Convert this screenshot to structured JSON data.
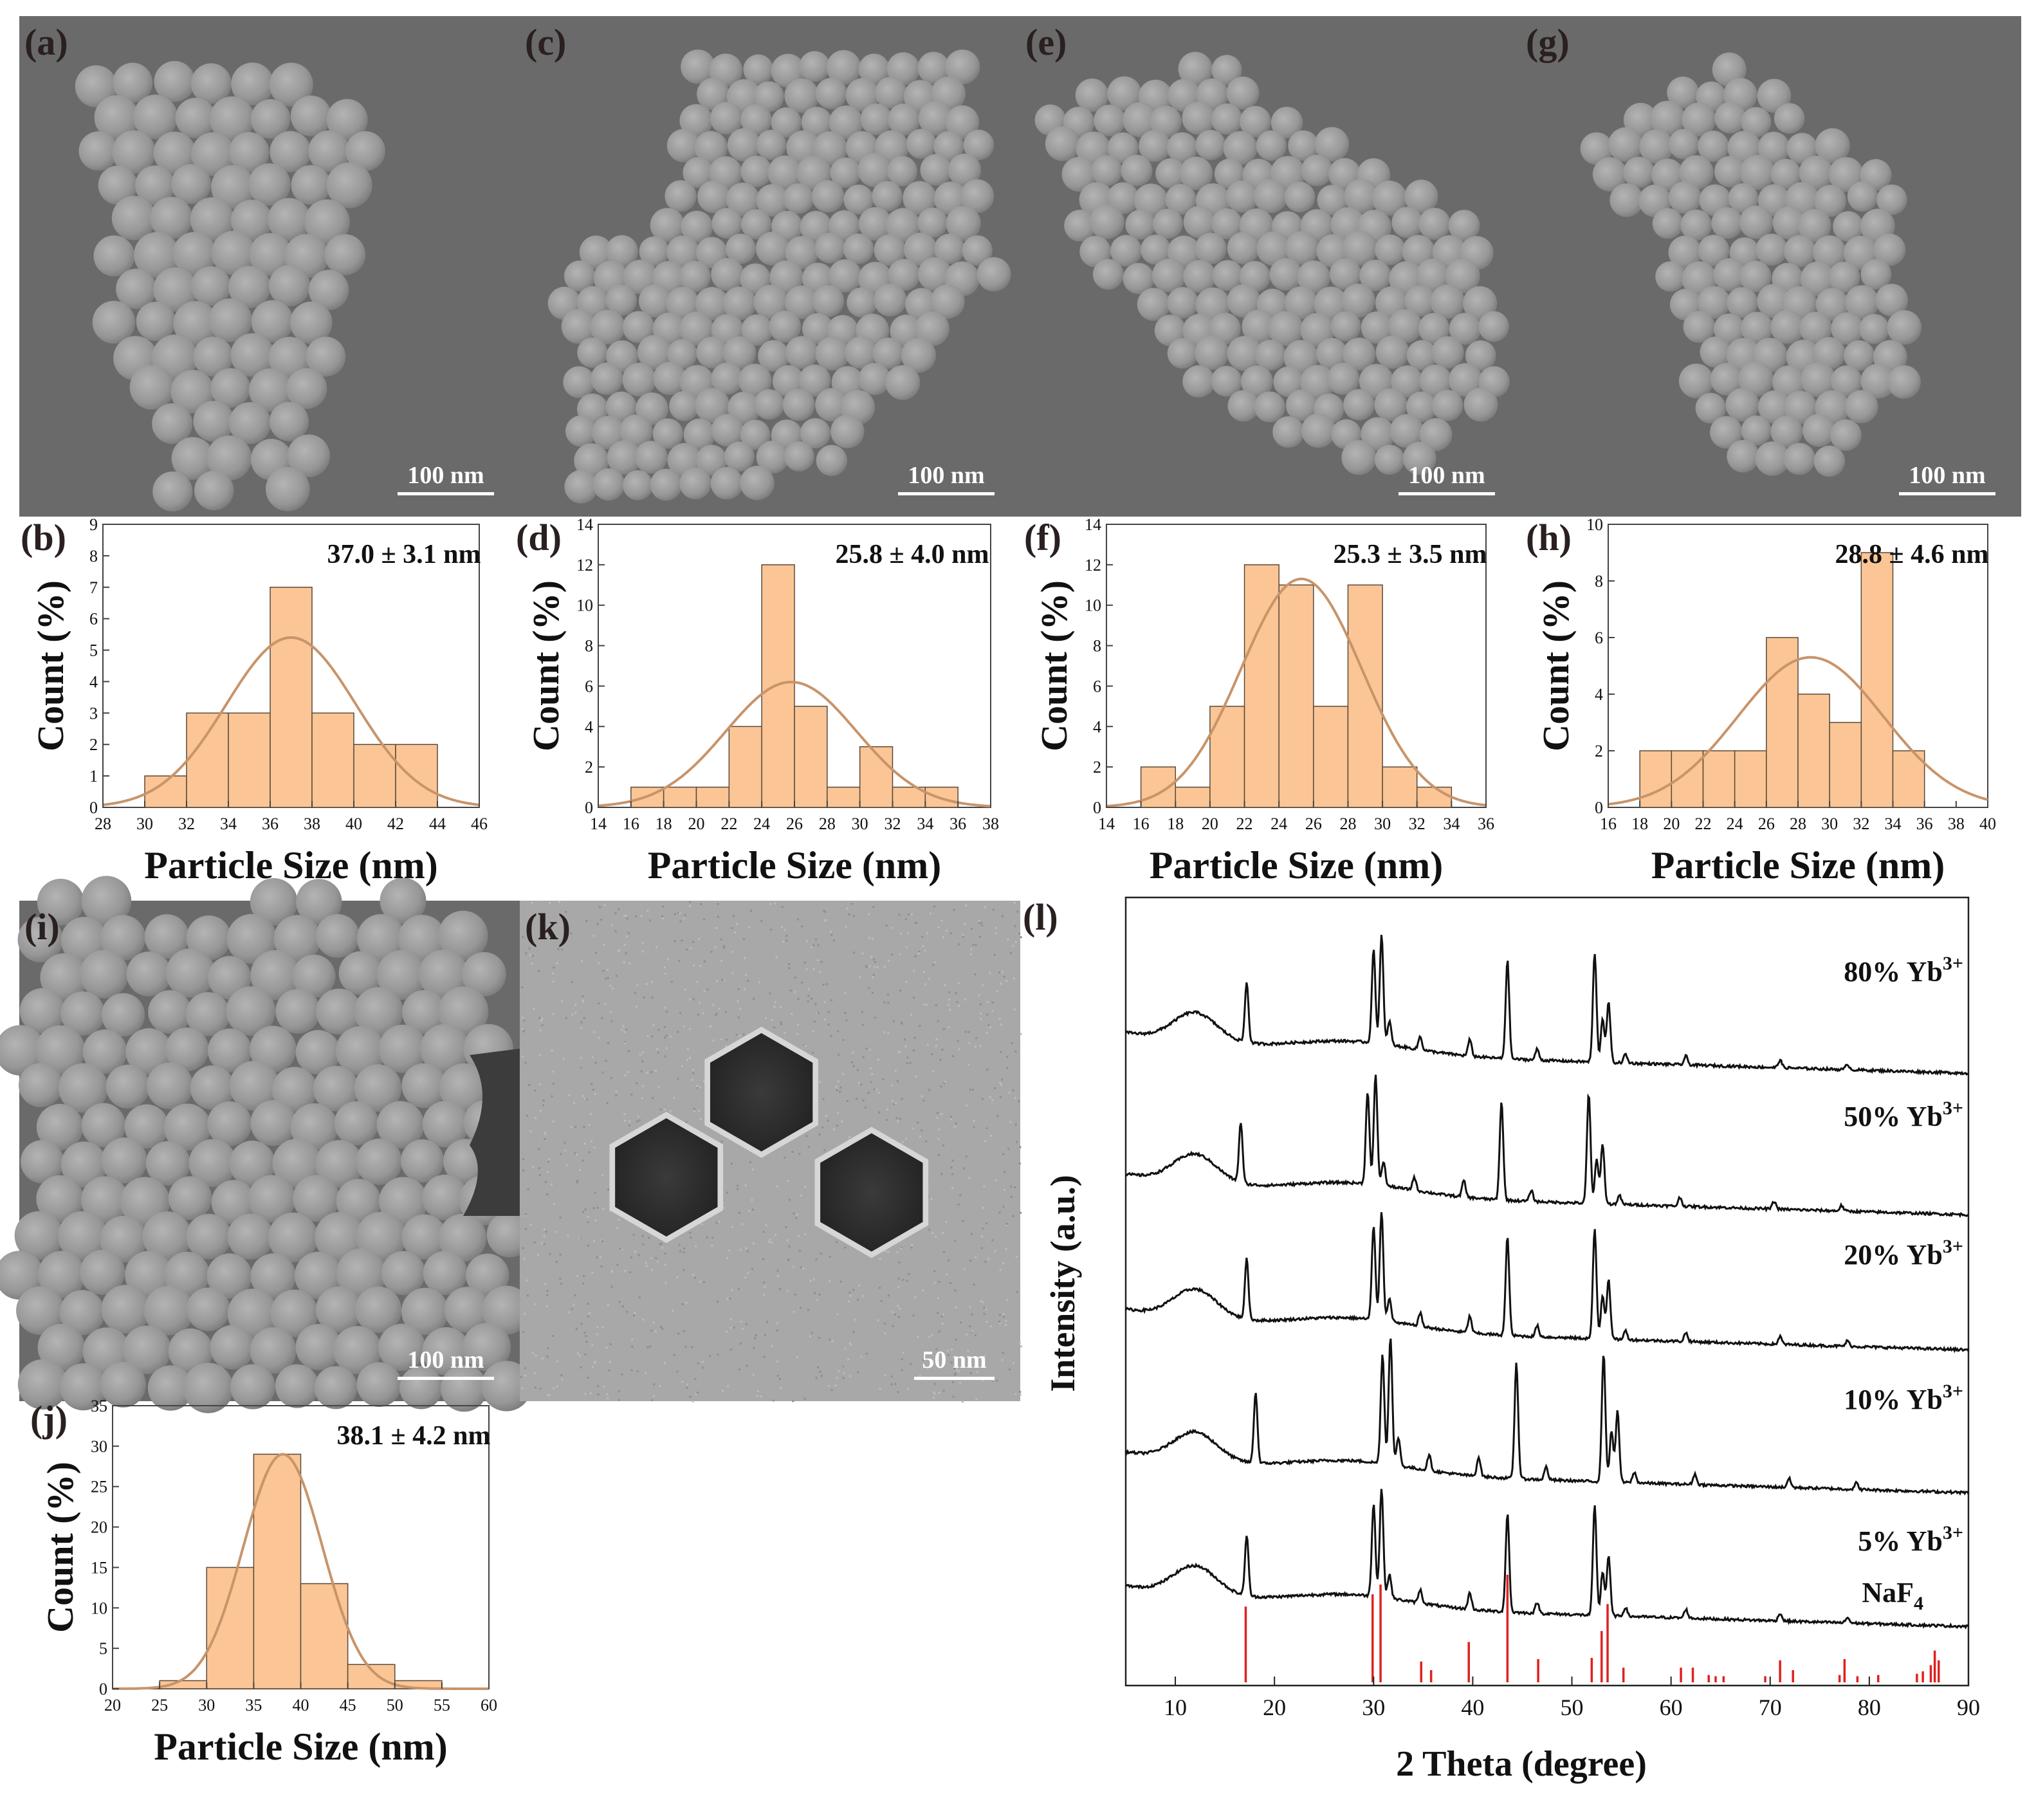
{
  "colors": {
    "bar_fill": "#fbc595",
    "bar_stroke": "#5a4a3a",
    "fit_line": "#c8946a",
    "xrd_line": "#111111",
    "ref_line": "#e02020",
    "sem_bg": "#6a6a6a",
    "sem_particle": "#9a9a9a",
    "tem_bg": "#a8a8a8",
    "tem_particle": "#2e2e2e"
  },
  "images": [
    {
      "label": "(a)",
      "scale_bar": "100 nm",
      "type": "sem"
    },
    {
      "label": "(c)",
      "scale_bar": "100 nm",
      "type": "sem"
    },
    {
      "label": "(e)",
      "scale_bar": "100 nm",
      "type": "sem"
    },
    {
      "label": "(g)",
      "scale_bar": "100 nm",
      "type": "sem"
    },
    {
      "label": "(i)",
      "scale_bar": "100 nm",
      "type": "sem"
    },
    {
      "label": "(k)",
      "scale_bar": "50 nm",
      "type": "tem"
    }
  ],
  "chart_data": [
    {
      "label": "(b)",
      "type": "bar",
      "annotation": "37.0 ± 3.1 nm",
      "xlabel": "Particle Size (nm)",
      "ylabel": "Count (%)",
      "xlim": [
        28,
        46
      ],
      "ylim": [
        0,
        9
      ],
      "xticks": [
        28,
        30,
        32,
        34,
        36,
        38,
        40,
        42,
        44,
        46
      ],
      "yticks": [
        0,
        1,
        2,
        3,
        4,
        5,
        6,
        7,
        8,
        9
      ],
      "bin_width": 2,
      "bins": [
        30,
        32,
        34,
        36,
        38,
        40,
        42
      ],
      "values": [
        1,
        3,
        3,
        7,
        3,
        2,
        2
      ],
      "fit": {
        "mean": 37.0,
        "sigma": 3.1,
        "peak": 5.4
      }
    },
    {
      "label": "(d)",
      "type": "bar",
      "annotation": "25.8 ± 4.0 nm",
      "xlabel": "Particle Size (nm)",
      "ylabel": "Count (%)",
      "xlim": [
        14,
        38
      ],
      "ylim": [
        0,
        14
      ],
      "xticks": [
        14,
        16,
        18,
        20,
        22,
        24,
        26,
        28,
        30,
        32,
        34,
        36,
        38
      ],
      "yticks": [
        0,
        2,
        4,
        6,
        8,
        10,
        12,
        14
      ],
      "bin_width": 2,
      "bins": [
        16,
        18,
        20,
        22,
        24,
        26,
        28,
        30,
        32,
        34
      ],
      "values": [
        1,
        1,
        1,
        4,
        12,
        5,
        1,
        3,
        1,
        1
      ],
      "fit": {
        "mean": 25.8,
        "sigma": 4.0,
        "peak": 6.2
      }
    },
    {
      "label": "(f)",
      "type": "bar",
      "annotation": "25.3 ± 3.5 nm",
      "xlabel": "Particle Size (nm)",
      "ylabel": "Count (%)",
      "xlim": [
        14,
        36
      ],
      "ylim": [
        0,
        14
      ],
      "xticks": [
        14,
        16,
        18,
        20,
        22,
        24,
        26,
        28,
        30,
        32,
        34,
        36
      ],
      "yticks": [
        0,
        2,
        4,
        6,
        8,
        10,
        12,
        14
      ],
      "bin_width": 2,
      "bins": [
        16,
        18,
        20,
        22,
        24,
        26,
        28,
        30,
        32
      ],
      "values": [
        2,
        1,
        5,
        12,
        11,
        5,
        11,
        2,
        1
      ],
      "fit": {
        "mean": 25.3,
        "sigma": 3.5,
        "peak": 11.3
      }
    },
    {
      "label": "(h)",
      "type": "bar",
      "annotation": "28.8 ± 4.6 nm",
      "xlabel": "Particle Size (nm)",
      "ylabel": "Count (%)",
      "xlim": [
        16,
        40
      ],
      "ylim": [
        0,
        10
      ],
      "xticks": [
        16,
        18,
        20,
        22,
        24,
        26,
        28,
        30,
        32,
        34,
        36,
        38,
        40
      ],
      "yticks": [
        0,
        2,
        4,
        6,
        8,
        10
      ],
      "bin_width": 2,
      "bins": [
        18,
        20,
        22,
        24,
        26,
        28,
        30,
        32,
        34
      ],
      "values": [
        2,
        2,
        2,
        2,
        6,
        4,
        3,
        9,
        2
      ],
      "fit": {
        "mean": 28.8,
        "sigma": 4.6,
        "peak": 5.3
      }
    },
    {
      "label": "(j)",
      "type": "bar",
      "annotation": "38.1 ± 4.2 nm",
      "xlabel": "Particle Size (nm)",
      "ylabel": "Count (%)",
      "xlim": [
        20,
        60
      ],
      "ylim": [
        0,
        35
      ],
      "xticks": [
        20,
        25,
        30,
        35,
        40,
        45,
        50,
        55,
        60
      ],
      "yticks": [
        0,
        5,
        10,
        15,
        20,
        25,
        30,
        35
      ],
      "bin_width": 5,
      "bins": [
        25,
        30,
        35,
        40,
        45,
        50
      ],
      "values": [
        1,
        15,
        29,
        13,
        3,
        1
      ],
      "fit": {
        "mean": 38.1,
        "sigma": 4.2,
        "peak": 29.0
      }
    },
    {
      "label": "(l)",
      "type": "line",
      "xlabel": "2 Theta (degree)",
      "ylabel": "Intensity (a.u.)",
      "xlim": [
        5,
        90
      ],
      "xticks": [
        10,
        20,
        30,
        40,
        50,
        60,
        70,
        80,
        90
      ],
      "series": [
        {
          "name": "80% Yb",
          "sup": "3+",
          "offset": 4
        },
        {
          "name": "50% Yb",
          "sup": "3+",
          "offset": 3
        },
        {
          "name": "20% Yb",
          "sup": "3+",
          "offset": 2
        },
        {
          "name": "10% Yb",
          "sup": "3+",
          "offset": 1
        },
        {
          "name": "5% Yb",
          "sup": "3+",
          "offset": 0
        }
      ],
      "peaks": [
        {
          "x": 17.2,
          "h": 0.55
        },
        {
          "x": 30.0,
          "h": 0.85
        },
        {
          "x": 30.8,
          "h": 1.0
        },
        {
          "x": 31.6,
          "h": 0.22
        },
        {
          "x": 34.7,
          "h": 0.12
        },
        {
          "x": 39.7,
          "h": 0.15
        },
        {
          "x": 43.5,
          "h": 0.9
        },
        {
          "x": 46.5,
          "h": 0.1
        },
        {
          "x": 52.3,
          "h": 1.0
        },
        {
          "x": 53.1,
          "h": 0.4
        },
        {
          "x": 53.7,
          "h": 0.55
        },
        {
          "x": 55.4,
          "h": 0.08
        },
        {
          "x": 61.5,
          "h": 0.08
        },
        {
          "x": 71.0,
          "h": 0.07
        },
        {
          "x": 77.8,
          "h": 0.05
        }
      ],
      "reference": {
        "name": "NaF",
        "sub": "4",
        "lines": [
          {
            "x": 17.1,
            "h": 0.62
          },
          {
            "x": 29.9,
            "h": 0.72
          },
          {
            "x": 30.7,
            "h": 0.8
          },
          {
            "x": 34.8,
            "h": 0.17
          },
          {
            "x": 35.8,
            "h": 0.1
          },
          {
            "x": 39.6,
            "h": 0.33
          },
          {
            "x": 43.5,
            "h": 0.88
          },
          {
            "x": 46.6,
            "h": 0.19
          },
          {
            "x": 52.0,
            "h": 0.2
          },
          {
            "x": 53.0,
            "h": 0.42
          },
          {
            "x": 53.6,
            "h": 0.64
          },
          {
            "x": 55.2,
            "h": 0.12
          },
          {
            "x": 61.0,
            "h": 0.12
          },
          {
            "x": 62.2,
            "h": 0.12
          },
          {
            "x": 63.8,
            "h": 0.06
          },
          {
            "x": 64.5,
            "h": 0.05
          },
          {
            "x": 65.3,
            "h": 0.05
          },
          {
            "x": 69.5,
            "h": 0.05
          },
          {
            "x": 71.0,
            "h": 0.18
          },
          {
            "x": 72.3,
            "h": 0.1
          },
          {
            "x": 77.0,
            "h": 0.06
          },
          {
            "x": 77.5,
            "h": 0.19
          },
          {
            "x": 78.8,
            "h": 0.05
          },
          {
            "x": 80.9,
            "h": 0.06
          },
          {
            "x": 84.8,
            "h": 0.07
          },
          {
            "x": 85.4,
            "h": 0.09
          },
          {
            "x": 86.2,
            "h": 0.14
          },
          {
            "x": 86.6,
            "h": 0.26
          },
          {
            "x": 87.0,
            "h": 0.18
          }
        ]
      }
    }
  ]
}
